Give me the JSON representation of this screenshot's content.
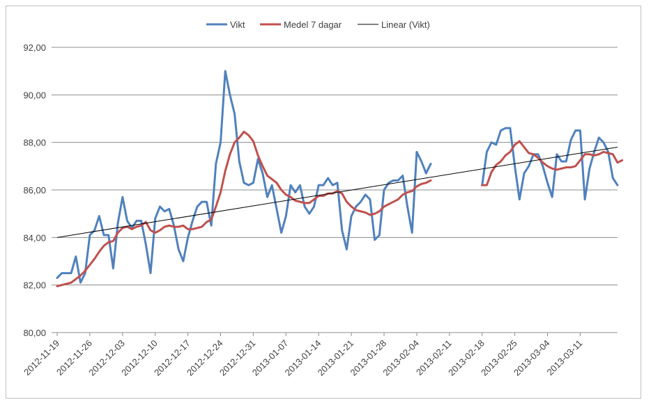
{
  "chart_data": {
    "type": "line",
    "title": "",
    "xlabel": "",
    "ylabel": "",
    "ylim": [
      80,
      92
    ],
    "y_ticks": [
      "80,00",
      "82,00",
      "84,00",
      "86,00",
      "88,00",
      "90,00",
      "92,00"
    ],
    "x_ticks": [
      "2012-11-19",
      "2012-11-26",
      "2012-12-03",
      "2012-12-10",
      "2012-12-17",
      "2012-12-24",
      "2012-12-31",
      "2013-01-07",
      "2013-01-14",
      "2013-01-21",
      "2013-01-28",
      "2013-02-04",
      "2013-02-11",
      "2013-02-18",
      "2013-02-25",
      "2013-03-04",
      "2013-03-11"
    ],
    "grid": "horizontal",
    "legend_position": "top",
    "series": [
      {
        "name": "Vikt",
        "color": "#4f81bd",
        "values": [
          82.3,
          82.5,
          82.5,
          82.5,
          83.2,
          82.1,
          82.5,
          84.1,
          84.3,
          84.9,
          84.1,
          84.1,
          82.7,
          84.6,
          85.7,
          84.7,
          84.4,
          84.7,
          84.7,
          83.7,
          82.5,
          84.8,
          85.3,
          85.1,
          85.2,
          84.5,
          83.5,
          83.0,
          84.0,
          84.7,
          85.3,
          85.5,
          85.5,
          84.5,
          87.1,
          88.0,
          91.0,
          90.0,
          89.2,
          87.2,
          86.3,
          86.2,
          86.3,
          87.3,
          86.7,
          85.7,
          86.2,
          85.2,
          84.2,
          84.9,
          86.2,
          85.9,
          86.2,
          85.3,
          85.0,
          85.3,
          86.2,
          86.2,
          86.5,
          86.2,
          86.3,
          84.3,
          83.5,
          84.9,
          85.3,
          85.5,
          85.8,
          85.6,
          83.9,
          84.1,
          86.0,
          86.3,
          86.4,
          86.4,
          86.6,
          85.3,
          84.2,
          87.6,
          87.2,
          86.7,
          87.1,
          null,
          null,
          null,
          null,
          null,
          null,
          null,
          null,
          null,
          null,
          86.2,
          87.6,
          88.0,
          87.9,
          88.5,
          88.6,
          88.6,
          87.0,
          85.6,
          86.7,
          87.0,
          87.5,
          87.5,
          87.0,
          86.3,
          85.7,
          87.5,
          87.2,
          87.2,
          88.1,
          88.5,
          88.5,
          85.6,
          86.9,
          87.6,
          88.2,
          88.0,
          87.6,
          86.5,
          86.2
        ]
      },
      {
        "name": "Medel 7 dagar",
        "color": "#c0504d",
        "values": [
          81.95,
          82.0,
          82.05,
          82.1,
          82.25,
          82.4,
          82.6,
          82.85,
          83.1,
          83.4,
          83.65,
          83.8,
          83.85,
          84.2,
          84.4,
          84.45,
          84.35,
          84.45,
          84.5,
          84.65,
          84.3,
          84.2,
          84.3,
          84.45,
          84.5,
          84.45,
          84.45,
          84.5,
          84.35,
          84.35,
          84.4,
          84.45,
          84.65,
          84.75,
          85.3,
          85.9,
          86.8,
          87.5,
          88.0,
          88.2,
          88.45,
          88.3,
          88.05,
          87.45,
          87.0,
          86.6,
          86.45,
          86.3,
          86.0,
          85.8,
          85.7,
          85.55,
          85.5,
          85.45,
          85.45,
          85.6,
          85.75,
          85.75,
          85.85,
          85.85,
          85.95,
          85.85,
          85.5,
          85.3,
          85.15,
          85.1,
          85.05,
          84.95,
          85.0,
          85.1,
          85.3,
          85.4,
          85.5,
          85.6,
          85.8,
          85.9,
          85.95,
          86.15,
          86.25,
          86.3,
          86.4,
          null,
          null,
          null,
          null,
          null,
          null,
          null,
          null,
          null,
          null,
          86.2,
          86.2,
          86.75,
          87.05,
          87.2,
          87.45,
          87.6,
          87.9,
          88.05,
          87.8,
          87.55,
          87.5,
          87.35,
          87.15,
          87.0,
          86.9,
          86.85,
          86.9,
          86.95,
          86.95,
          87.0,
          87.25,
          87.5,
          87.5,
          87.45,
          87.5,
          87.6,
          87.55,
          87.5,
          87.15,
          87.25
        ]
      },
      {
        "name": "Linear (Vikt)",
        "color": "#000000",
        "trend": [
          84.0,
          87.8
        ]
      }
    ]
  }
}
